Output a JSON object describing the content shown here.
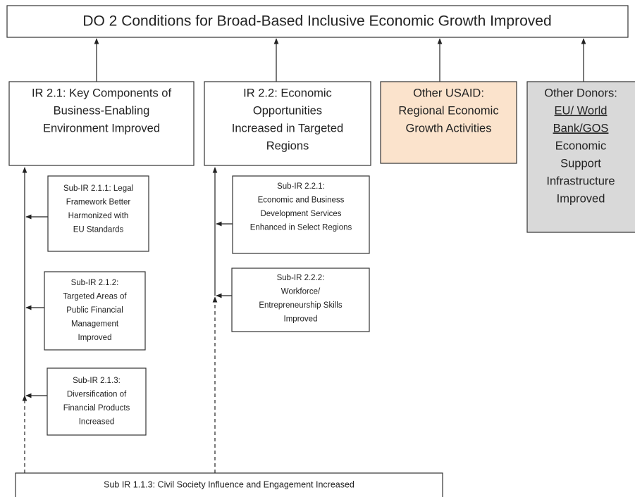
{
  "title": "DO 2 Conditions for Broad-Based Inclusive Economic Growth Improved",
  "boxes": [
    {
      "lines": [
        "IR 2.1: Key Components of",
        "Business-Enabling",
        "Environment Improved"
      ]
    },
    {
      "lines": [
        "IR 2.2: Economic",
        "Opportunities",
        "Increased in Targeted",
        "Regions"
      ]
    },
    {
      "lines": [
        "Other USAID:",
        "Regional Economic",
        "Growth Activities"
      ]
    },
    {
      "lines": [
        "Other Donors:",
        "EU/ World",
        "Bank/GOS",
        "Economic",
        "Support",
        "Infrastructure",
        "Improved"
      ]
    }
  ],
  "sub_boxes": [
    {
      "lines": [
        "Sub-IR 2.1.1: Legal",
        "Framework Better",
        "Harmonized with",
        "EU Standards"
      ]
    },
    {
      "lines": [
        "Sub-IR 2.1.2:",
        "Targeted Areas of",
        "Public Financial",
        "Management",
        "Improved"
      ]
    },
    {
      "lines": [
        "Sub-IR 2.1.3:",
        "Diversification of",
        "Financial Products",
        "Increased"
      ]
    },
    {
      "lines": [
        "Sub-IR 2.2.1:",
        "Economic and Business",
        "Development  Services",
        "Enhanced in Select Regions"
      ]
    },
    {
      "lines": [
        "Sub-IR 2.2.2:",
        "Workforce/",
        "Entrepreneurship Skills",
        "Improved"
      ]
    }
  ],
  "bottom": "Sub IR 1.1.3: Civil Society Influence and Engagement Increased"
}
